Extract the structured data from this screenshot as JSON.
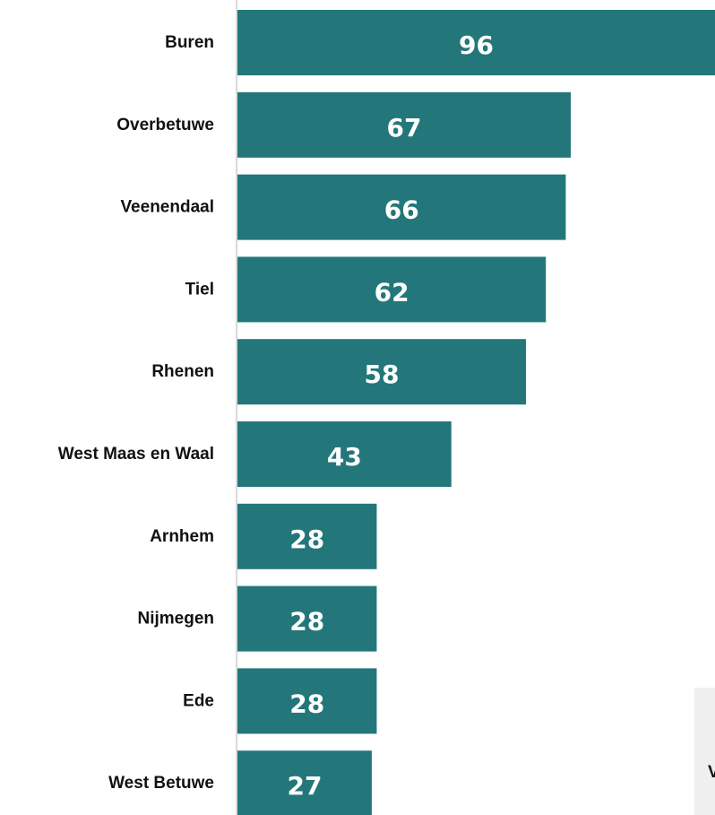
{
  "chart_data": {
    "type": "bar",
    "orientation": "horizontal",
    "categories": [
      "Buren",
      "Overbetuwe",
      "Veenendaal",
      "Tiel",
      "Rhenen",
      "West Maas en Waal",
      "Arnhem",
      "Nijmegen",
      "Ede",
      "West Betuwe"
    ],
    "values": [
      96,
      67,
      66,
      62,
      58,
      43,
      28,
      28,
      28,
      27
    ],
    "data_labels": [
      "96",
      "67",
      "66",
      "62",
      "58",
      "43",
      "28",
      "28",
      "28",
      "27"
    ],
    "title": "",
    "xlabel": "",
    "ylabel": "",
    "xlim": [
      0,
      96
    ],
    "grid": false,
    "legend": "none",
    "bar_color": "#23777a",
    "label_color": "#ffffff",
    "axis_color": "#d9d9d9"
  },
  "overlay": {
    "clipped_text": "V"
  }
}
